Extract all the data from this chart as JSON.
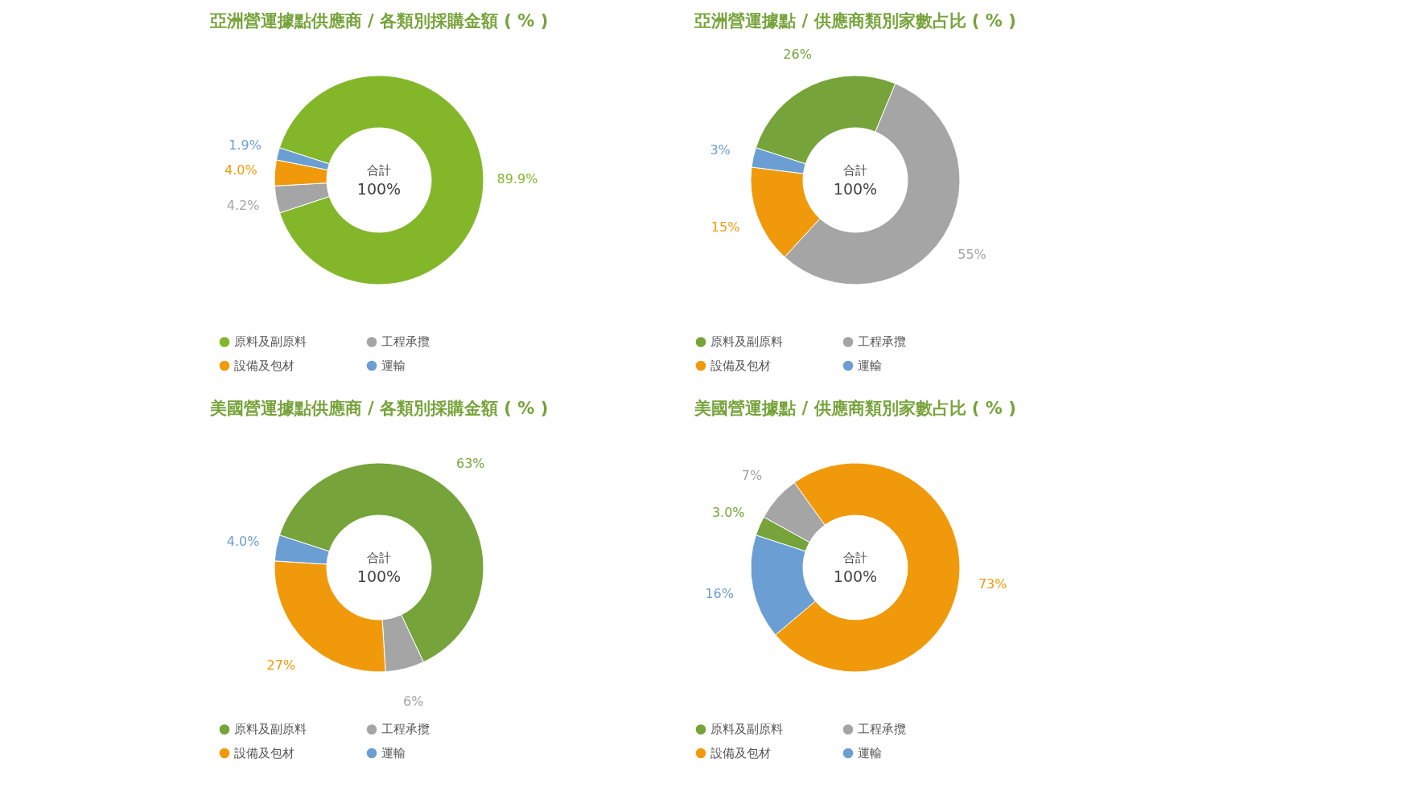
{
  "chart_data": [
    {
      "type": "donut",
      "title": "亞洲營運據點供應商 / 各類別採購金額 ( % )",
      "categories": [
        "原料及副原料",
        "工程承攬",
        "設備及包材",
        "運輸"
      ],
      "values": [
        89.9,
        4.2,
        4.0,
        1.9
      ],
      "colors": [
        "#84b62a",
        "#a5a5a5",
        "#f09a0b",
        "#6b9ed2"
      ],
      "value_labels": [
        "89.9%",
        "4.2%",
        "4.0%",
        "1.9%"
      ],
      "annotations": [
        "合計",
        "100%"
      ],
      "legend": "bottom"
    },
    {
      "type": "donut",
      "title": "亞洲營運據點 / 供應商類別家數占比 ( % )",
      "categories": [
        "原料及副原料",
        "工程承攬",
        "設備及包材",
        "運輸"
      ],
      "values": [
        26,
        55,
        15,
        3
      ],
      "colors": [
        "#76a33a",
        "#a5a5a5",
        "#f09a0b",
        "#6b9ed2"
      ],
      "value_labels": [
        "26%",
        "55%",
        "15%",
        "3%"
      ],
      "annotations": [
        "合計",
        "100%"
      ],
      "legend": "bottom"
    },
    {
      "type": "donut",
      "title": "美國營運據點供應商 / 各類別採購金額 ( % )",
      "categories": [
        "原料及副原料",
        "工程承攬",
        "設備及包材",
        "運輸"
      ],
      "values": [
        63,
        6,
        27,
        4.0
      ],
      "colors": [
        "#76a33a",
        "#a5a5a5",
        "#f09a0b",
        "#6b9ed2"
      ],
      "value_labels": [
        "63%",
        "6%",
        "27%",
        "4.0%"
      ],
      "annotations": [
        "合計",
        "100%"
      ],
      "legend": "bottom"
    },
    {
      "type": "donut",
      "title": "美國營運據點 / 供應商類別家數占比 ( % )",
      "categories": [
        "原料及副原料",
        "工程承攬",
        "設備及包材",
        "運輸"
      ],
      "values": [
        3.0,
        7,
        73,
        16
      ],
      "colors": [
        "#76a33a",
        "#a5a5a5",
        "#f09a0b",
        "#6b9ed2"
      ],
      "value_labels": [
        "3.0%",
        "7%",
        "73%",
        "16%"
      ],
      "annotations": [
        "合計",
        "100%"
      ],
      "legend": "bottom"
    }
  ]
}
